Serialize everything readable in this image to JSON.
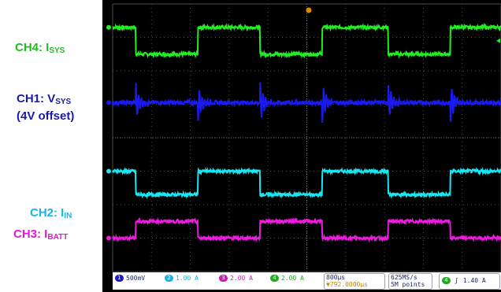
{
  "labels": {
    "ch4": {
      "main": "CH4: I",
      "sub": "SYS",
      "color": "#22bb22"
    },
    "ch1": {
      "main": "CH1: V",
      "sub": "SYS",
      "line2": "(4V offset)",
      "color": "#1a1aaa"
    },
    "ch2": {
      "main": "CH2: I",
      "sub": "IN",
      "color": "#19b5e6"
    },
    "ch3": {
      "main": "CH3: I",
      "sub": "BATT",
      "color": "#e01ad0"
    }
  },
  "status": {
    "ch1": {
      "num": "1",
      "scale": "500mV",
      "color": "#1a1acc"
    },
    "ch2": {
      "num": "2",
      "scale": "1.00 A",
      "color": "#19b5e6"
    },
    "ch3": {
      "num": "3",
      "scale": "2.00 A",
      "color": "#cc1ab8"
    },
    "ch4": {
      "num": "4",
      "scale": "2.00 A",
      "color": "#22aa22"
    },
    "timebase": "800µs",
    "trigger_pos": "▼792.0000µs",
    "sample_rate": "625MS/s",
    "record_length": "5M points",
    "trigger_channel": "4",
    "trigger_level": "1.40 A"
  },
  "chart_data": {
    "type": "line",
    "title": "",
    "xlabel": "",
    "ylabel": "",
    "x_divisions": 10,
    "y_divisions": 8,
    "grid": true,
    "time_per_div_us": 800,
    "x": [
      0,
      0.6,
      2.2,
      3.8,
      5.4,
      7.1,
      8.7,
      10
    ],
    "series": [
      {
        "name": "CH4: ISYS",
        "color": "#22ee22",
        "levels_div": [
          3.3,
          3.3,
          2.5,
          3.3,
          2.5,
          3.3,
          2.5,
          3.3
        ],
        "edges_div": [
          0.6,
          2.2,
          3.8,
          5.4,
          7.1,
          8.7
        ],
        "noise": 0.05
      },
      {
        "name": "CH1: VSYS",
        "color": "#1a1aee",
        "levels_div": [
          1.05,
          1.05,
          1.05,
          1.05,
          1.05,
          1.05,
          1.05,
          1.05
        ],
        "edges_div": [
          0.6,
          2.2,
          3.8,
          5.4,
          7.1,
          8.7
        ],
        "noise": 0.06,
        "ringing": true
      },
      {
        "name": "CH2: IIN",
        "color": "#19e6f0",
        "levels_div": [
          -1.0,
          -1.0,
          -1.7,
          -1.0,
          -1.7,
          -1.0,
          -1.7,
          -1.0
        ],
        "edges_div": [
          0.6,
          2.2,
          3.8,
          5.4,
          7.1,
          8.7
        ],
        "noise": 0.05
      },
      {
        "name": "CH3: IBATT",
        "color": "#ee1ae0",
        "levels_div": [
          -3.0,
          -3.0,
          -2.5,
          -3.0,
          -2.5,
          -3.0,
          -2.5,
          -3.0
        ],
        "edges_div": [
          0.6,
          2.2,
          3.8,
          5.4,
          7.1,
          8.7
        ],
        "noise": 0.05
      }
    ]
  }
}
